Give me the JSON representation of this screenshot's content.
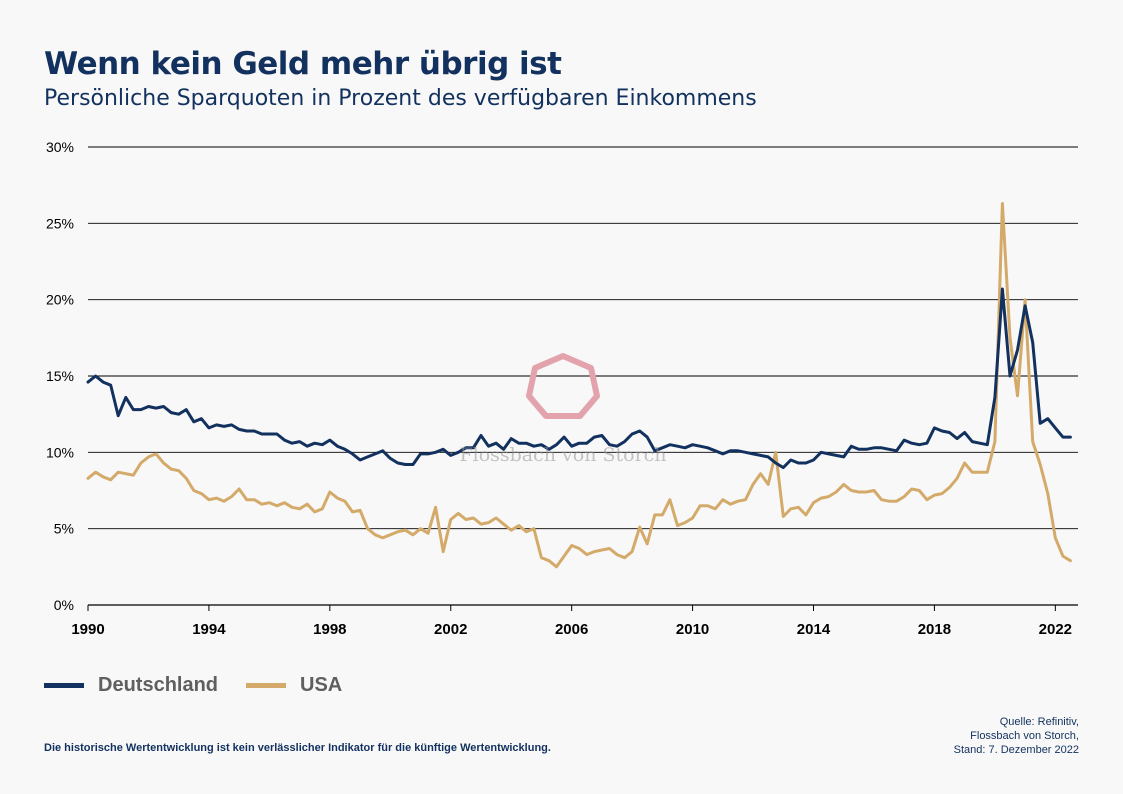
{
  "title": "Wenn kein Geld mehr übrig ist",
  "subtitle": "Persönliche Sparquoten in Prozent des verfügbaren Einkommens",
  "watermark": "Flossbach von Storch",
  "disclaimer": "Die historische Wertentwicklung ist kein verlässlicher Indikator für die künftige Wertentwicklung.",
  "source": [
    "Quelle: Refinitiv,",
    "Flossbach von Storch,",
    "Stand: 7. Dezember 2022"
  ],
  "legend": {
    "de": "Deutschland",
    "us": "USA"
  },
  "colors": {
    "de": "#12315e",
    "us": "#d4aa6a",
    "grid": "#000000",
    "watermark": "#e3a3ac"
  },
  "chart_data": {
    "type": "line",
    "title": "Wenn kein Geld mehr übrig ist",
    "ylabel": "Persönliche Sparquoten in Prozent des verfügbaren Einkommens",
    "xlim": [
      1990,
      2022.75
    ],
    "ylim": [
      0,
      30
    ],
    "x_ticks": [
      1990,
      1994,
      1998,
      2002,
      2006,
      2010,
      2014,
      2018,
      2022
    ],
    "y_ticks": [
      0,
      5,
      10,
      15,
      20,
      25,
      30
    ],
    "y_tick_labels": [
      "0%",
      "5%",
      "10%",
      "15%",
      "20%",
      "25%",
      "30%"
    ],
    "grid": true,
    "legend_position": "bottom-left",
    "series": [
      {
        "name": "Deutschland",
        "color": "#12315e",
        "x": [
          1990,
          1990.25,
          1990.5,
          1990.75,
          1991,
          1991.25,
          1991.5,
          1991.75,
          1992,
          1992.25,
          1992.5,
          1992.75,
          1993,
          1993.25,
          1993.5,
          1993.75,
          1994,
          1994.25,
          1994.5,
          1994.75,
          1995,
          1995.25,
          1995.5,
          1995.75,
          1996,
          1996.25,
          1996.5,
          1996.75,
          1997,
          1997.25,
          1997.5,
          1997.75,
          1998,
          1998.25,
          1998.5,
          1998.75,
          1999,
          1999.25,
          1999.5,
          1999.75,
          2000,
          2000.25,
          2000.5,
          2000.75,
          2001,
          2001.25,
          2001.5,
          2001.75,
          2002,
          2002.25,
          2002.5,
          2002.75,
          2003,
          2003.25,
          2003.5,
          2003.75,
          2004,
          2004.25,
          2004.5,
          2004.75,
          2005,
          2005.25,
          2005.5,
          2005.75,
          2006,
          2006.25,
          2006.5,
          2006.75,
          2007,
          2007.25,
          2007.5,
          2007.75,
          2008,
          2008.25,
          2008.5,
          2008.75,
          2009,
          2009.25,
          2009.5,
          2009.75,
          2010,
          2010.25,
          2010.5,
          2010.75,
          2011,
          2011.25,
          2011.5,
          2011.75,
          2012,
          2012.25,
          2012.5,
          2012.75,
          2013,
          2013.25,
          2013.5,
          2013.75,
          2014,
          2014.25,
          2014.5,
          2014.75,
          2015,
          2015.25,
          2015.5,
          2015.75,
          2016,
          2016.25,
          2016.5,
          2016.75,
          2017,
          2017.25,
          2017.5,
          2017.75,
          2018,
          2018.25,
          2018.5,
          2018.75,
          2019,
          2019.25,
          2019.5,
          2019.75,
          2020,
          2020.25,
          2020.5,
          2020.75,
          2021,
          2021.25,
          2021.5,
          2021.75,
          2022,
          2022.25,
          2022.5
        ],
        "values": [
          14.6,
          15.0,
          14.6,
          14.4,
          12.4,
          13.6,
          12.8,
          12.8,
          13.0,
          12.9,
          13.0,
          12.6,
          12.5,
          12.8,
          12.0,
          12.2,
          11.6,
          11.8,
          11.7,
          11.8,
          11.5,
          11.4,
          11.4,
          11.2,
          11.2,
          11.2,
          10.8,
          10.6,
          10.7,
          10.4,
          10.6,
          10.5,
          10.8,
          10.4,
          10.2,
          9.9,
          9.5,
          9.7,
          9.9,
          10.1,
          9.6,
          9.3,
          9.2,
          9.2,
          9.9,
          9.9,
          10.0,
          10.2,
          9.8,
          10.0,
          10.3,
          10.3,
          11.1,
          10.4,
          10.6,
          10.2,
          10.9,
          10.6,
          10.6,
          10.4,
          10.5,
          10.2,
          10.5,
          11.0,
          10.4,
          10.6,
          10.6,
          11.0,
          11.1,
          10.5,
          10.4,
          10.7,
          11.2,
          11.4,
          11.0,
          10.1,
          10.3,
          10.5,
          10.4,
          10.3,
          10.5,
          10.4,
          10.3,
          10.1,
          9.9,
          10.1,
          10.1,
          10.0,
          9.9,
          9.8,
          9.7,
          9.3,
          9.0,
          9.5,
          9.3,
          9.3,
          9.5,
          10.0,
          9.9,
          9.8,
          9.7,
          10.4,
          10.2,
          10.2,
          10.3,
          10.3,
          10.2,
          10.1,
          10.8,
          10.6,
          10.5,
          10.6,
          11.6,
          11.4,
          11.3,
          10.9,
          11.3,
          10.7,
          10.6,
          10.5,
          13.6,
          20.7,
          15.0,
          16.7,
          19.6,
          17.2,
          11.9,
          12.2,
          11.6,
          11.0,
          11.0
        ]
      },
      {
        "name": "USA",
        "color": "#d4aa6a",
        "x": [
          1990,
          1990.25,
          1990.5,
          1990.75,
          1991,
          1991.25,
          1991.5,
          1991.75,
          1992,
          1992.25,
          1992.5,
          1992.75,
          1993,
          1993.25,
          1993.5,
          1993.75,
          1994,
          1994.25,
          1994.5,
          1994.75,
          1995,
          1995.25,
          1995.5,
          1995.75,
          1996,
          1996.25,
          1996.5,
          1996.75,
          1997,
          1997.25,
          1997.5,
          1997.75,
          1998,
          1998.25,
          1998.5,
          1998.75,
          1999,
          1999.25,
          1999.5,
          1999.75,
          2000,
          2000.25,
          2000.5,
          2000.75,
          2001,
          2001.25,
          2001.5,
          2001.75,
          2002,
          2002.25,
          2002.5,
          2002.75,
          2003,
          2003.25,
          2003.5,
          2003.75,
          2004,
          2004.25,
          2004.5,
          2004.75,
          2005,
          2005.25,
          2005.5,
          2005.75,
          2006,
          2006.25,
          2006.5,
          2006.75,
          2007,
          2007.25,
          2007.5,
          2007.75,
          2008,
          2008.25,
          2008.5,
          2008.75,
          2009,
          2009.25,
          2009.5,
          2009.75,
          2010,
          2010.25,
          2010.5,
          2010.75,
          2011,
          2011.25,
          2011.5,
          2011.75,
          2012,
          2012.25,
          2012.5,
          2012.75,
          2013,
          2013.25,
          2013.5,
          2013.75,
          2014,
          2014.25,
          2014.5,
          2014.75,
          2015,
          2015.25,
          2015.5,
          2015.75,
          2016,
          2016.25,
          2016.5,
          2016.75,
          2017,
          2017.25,
          2017.5,
          2017.75,
          2018,
          2018.25,
          2018.5,
          2018.75,
          2019,
          2019.25,
          2019.5,
          2019.75,
          2020,
          2020.25,
          2020.5,
          2020.75,
          2021,
          2021.25,
          2021.5,
          2021.75,
          2022,
          2022.25,
          2022.5
        ],
        "values": [
          8.3,
          8.7,
          8.4,
          8.2,
          8.7,
          8.6,
          8.5,
          9.3,
          9.7,
          9.9,
          9.3,
          8.9,
          8.8,
          8.3,
          7.5,
          7.3,
          6.9,
          7.0,
          6.8,
          7.1,
          7.6,
          6.9,
          6.9,
          6.6,
          6.7,
          6.5,
          6.7,
          6.4,
          6.3,
          6.6,
          6.1,
          6.3,
          7.4,
          7.0,
          6.8,
          6.1,
          6.2,
          5.0,
          4.6,
          4.4,
          4.6,
          4.8,
          4.9,
          4.6,
          5.0,
          4.7,
          6.4,
          3.5,
          5.6,
          6.0,
          5.6,
          5.7,
          5.3,
          5.4,
          5.7,
          5.3,
          4.9,
          5.2,
          4.8,
          5.0,
          3.1,
          2.9,
          2.5,
          3.2,
          3.9,
          3.7,
          3.3,
          3.5,
          3.6,
          3.7,
          3.3,
          3.1,
          3.5,
          5.1,
          4.0,
          5.9,
          5.9,
          6.9,
          5.2,
          5.4,
          5.7,
          6.5,
          6.5,
          6.3,
          6.9,
          6.6,
          6.8,
          6.9,
          7.9,
          8.6,
          7.9,
          10.0,
          5.8,
          6.3,
          6.4,
          5.9,
          6.7,
          7.0,
          7.1,
          7.4,
          7.9,
          7.5,
          7.4,
          7.4,
          7.5,
          6.9,
          6.8,
          6.8,
          7.1,
          7.6,
          7.5,
          6.9,
          7.2,
          7.3,
          7.7,
          8.3,
          9.3,
          8.7,
          8.7,
          8.7,
          10.7,
          26.3,
          17.5,
          13.7,
          20.0,
          10.7,
          9.2,
          7.3,
          4.4,
          3.2,
          2.9
        ]
      }
    ]
  }
}
